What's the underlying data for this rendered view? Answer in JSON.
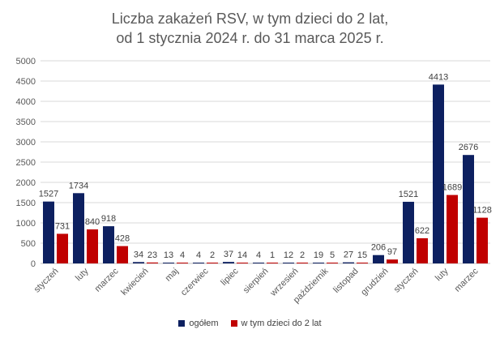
{
  "title_line1": "Liczba zakażeń RSV, w tym dzieci do 2 lat,",
  "title_line2": "od 1 stycznia 2024 r. do 31 marca 2025 r.",
  "colors": {
    "ogolem": "#0D2060",
    "dzieci": "#C00000",
    "grid": "#D9D9D9",
    "text": "#595959"
  },
  "chart_data": {
    "type": "bar",
    "title": "Liczba zakażeń RSV, w tym dzieci do 2 lat, od 1 stycznia 2024 r. do 31 marca 2025 r.",
    "categories": [
      "styczeń",
      "luty",
      "marzec",
      "kwiecień",
      "maj",
      "czerwiec",
      "lipiec",
      "sierpień",
      "wrzesień",
      "październik",
      "listopad",
      "grudzień",
      "styczeń",
      "luty",
      "marzec"
    ],
    "series": [
      {
        "name": "ogółem",
        "values": [
          1527,
          1734,
          918,
          34,
          13,
          4,
          37,
          4,
          12,
          19,
          27,
          206,
          1521,
          4413,
          2676
        ]
      },
      {
        "name": "w tym dzieci do 2 lat",
        "values": [
          731,
          840,
          428,
          23,
          4,
          2,
          14,
          1,
          2,
          5,
          15,
          97,
          622,
          1689,
          1128
        ]
      }
    ],
    "ylim": [
      0,
      5000
    ],
    "yticks": [
      0,
      500,
      1000,
      1500,
      2000,
      2500,
      3000,
      3500,
      4000,
      4500,
      5000
    ],
    "grid": true,
    "legend_position": "bottom"
  }
}
